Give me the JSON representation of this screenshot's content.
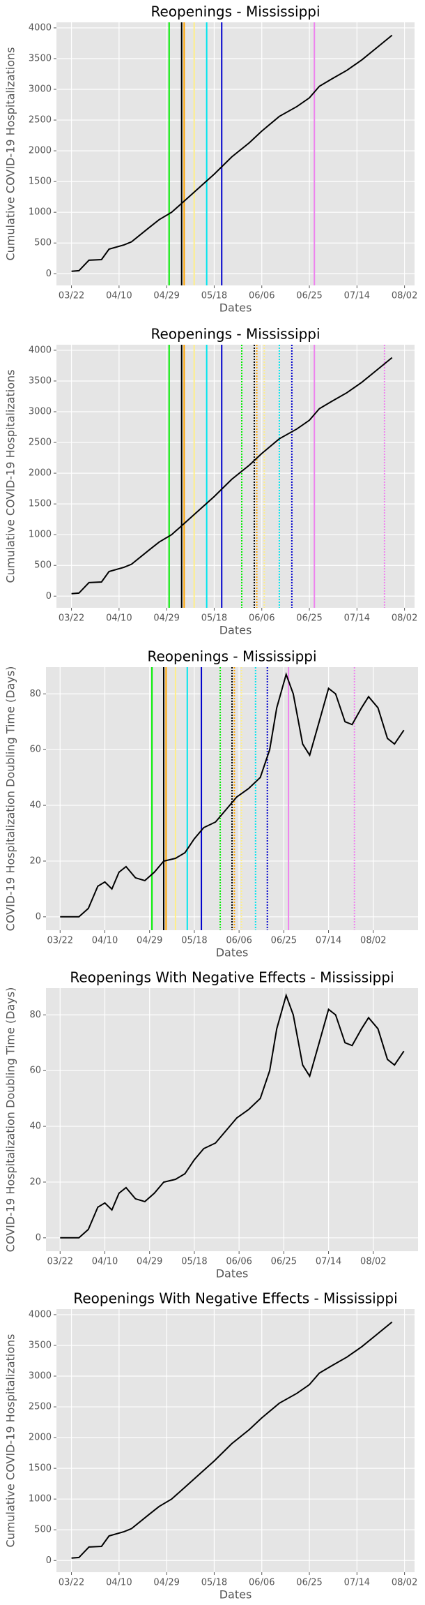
{
  "chart_data": [
    {
      "type": "line",
      "title": "Reopenings - Mississippi",
      "xlabel": "Dates",
      "ylabel": "Cumulative COVID-19 Hospitalizations",
      "color": "#000000",
      "x": [
        "03/22",
        "03/25",
        "03/29",
        "04/03",
        "04/06",
        "04/12",
        "04/15",
        "04/22",
        "04/26",
        "05/01",
        "05/06",
        "05/12",
        "05/18",
        "05/25",
        "06/01",
        "06/06",
        "06/13",
        "06/20",
        "06/25",
        "06/29",
        "07/04",
        "07/10",
        "07/16",
        "07/22",
        "07/28"
      ],
      "values": [
        40,
        50,
        220,
        230,
        400,
        470,
        520,
        750,
        880,
        1000,
        1180,
        1400,
        1620,
        1900,
        2130,
        2320,
        2560,
        2720,
        2860,
        3050,
        3170,
        3310,
        3480,
        3680,
        3880
      ],
      "xlim": [
        "03/16",
        "08/06"
      ],
      "xticks": [
        "03/22",
        "04/10",
        "04/29",
        "05/18",
        "06/06",
        "06/25",
        "07/14",
        "08/02"
      ],
      "ylim": [
        -190,
        4090
      ],
      "yticks": [
        0,
        500,
        1000,
        1500,
        2000,
        2500,
        3000,
        3500,
        4000
      ],
      "grid": true,
      "events": [
        {
          "date": "04/30",
          "color": "#00ee00",
          "style": "solid"
        },
        {
          "date": "05/05",
          "color": "#000000",
          "style": "solid"
        },
        {
          "date": "05/06",
          "color": "#ffa500",
          "style": "solid"
        },
        {
          "date": "05/10",
          "color": "#ffee88",
          "style": "solid"
        },
        {
          "date": "05/15",
          "color": "#00e5ee",
          "style": "solid"
        },
        {
          "date": "05/21",
          "color": "#0000cd",
          "style": "solid"
        },
        {
          "date": "06/27",
          "color": "#ee82ee",
          "style": "solid"
        }
      ]
    },
    {
      "type": "line",
      "title": "Reopenings - Mississippi",
      "xlabel": "Dates",
      "ylabel": "Cumulative COVID-19 Hospitalizations",
      "color": "#000000",
      "x": [
        "03/22",
        "03/25",
        "03/29",
        "04/03",
        "04/06",
        "04/12",
        "04/15",
        "04/22",
        "04/26",
        "05/01",
        "05/06",
        "05/12",
        "05/18",
        "05/25",
        "06/01",
        "06/06",
        "06/13",
        "06/20",
        "06/25",
        "06/29",
        "07/04",
        "07/10",
        "07/16",
        "07/22",
        "07/28"
      ],
      "values": [
        40,
        50,
        220,
        230,
        400,
        470,
        520,
        750,
        880,
        1000,
        1180,
        1400,
        1620,
        1900,
        2130,
        2320,
        2560,
        2720,
        2860,
        3050,
        3170,
        3310,
        3480,
        3680,
        3880
      ],
      "xlim": [
        "03/16",
        "08/06"
      ],
      "xticks": [
        "03/22",
        "04/10",
        "04/29",
        "05/18",
        "06/06",
        "06/25",
        "07/14",
        "08/02"
      ],
      "ylim": [
        -190,
        4090
      ],
      "yticks": [
        0,
        500,
        1000,
        1500,
        2000,
        2500,
        3000,
        3500,
        4000
      ],
      "grid": true,
      "events": [
        {
          "date": "04/30",
          "color": "#00ee00",
          "style": "solid"
        },
        {
          "date": "05/05",
          "color": "#000000",
          "style": "solid"
        },
        {
          "date": "05/06",
          "color": "#ffa500",
          "style": "solid"
        },
        {
          "date": "05/10",
          "color": "#ffee88",
          "style": "solid"
        },
        {
          "date": "05/15",
          "color": "#00e5ee",
          "style": "solid"
        },
        {
          "date": "05/21",
          "color": "#0000cd",
          "style": "solid"
        },
        {
          "date": "06/27",
          "color": "#ee82ee",
          "style": "solid"
        },
        {
          "date": "05/29",
          "color": "#00ee00",
          "style": "dotted"
        },
        {
          "date": "06/03",
          "color": "#000000",
          "style": "dotted"
        },
        {
          "date": "06/04",
          "color": "#ffa500",
          "style": "dotted"
        },
        {
          "date": "06/07",
          "color": "#ffee88",
          "style": "dotted"
        },
        {
          "date": "06/13",
          "color": "#00e5ee",
          "style": "dotted"
        },
        {
          "date": "06/18",
          "color": "#0000cd",
          "style": "dotted"
        },
        {
          "date": "07/25",
          "color": "#ee82ee",
          "style": "dotted"
        }
      ]
    },
    {
      "type": "line",
      "title": "Reopenings - Mississippi",
      "xlabel": "Dates",
      "ylabel": "COVID-19 Hospitalization Doubling Time (Days)",
      "color": "#000000",
      "x": [
        "03/22",
        "03/30",
        "04/03",
        "04/07",
        "04/10",
        "04/13",
        "04/16",
        "04/19",
        "04/23",
        "04/27",
        "05/01",
        "05/05",
        "05/10",
        "05/14",
        "05/18",
        "05/22",
        "05/27",
        "06/01",
        "06/05",
        "06/10",
        "06/15",
        "06/19",
        "06/22",
        "06/26",
        "06/29",
        "07/03",
        "07/06",
        "07/10",
        "07/14",
        "07/17",
        "07/21",
        "07/24",
        "07/28",
        "07/31",
        "08/04",
        "08/08",
        "08/11",
        "08/15"
      ],
      "values": [
        0,
        0,
        3,
        11,
        12.5,
        10,
        16,
        18,
        14,
        13,
        16,
        20,
        21,
        23,
        28,
        32,
        34,
        39,
        43,
        46,
        50,
        60,
        75,
        87,
        80,
        62,
        58,
        70,
        82,
        80,
        70,
        69,
        75,
        79,
        75,
        64,
        62,
        67
      ],
      "xlim": [
        "03/16",
        "08/21"
      ],
      "xticks": [
        "03/22",
        "04/10",
        "04/29",
        "05/18",
        "06/06",
        "06/25",
        "07/14",
        "08/02"
      ],
      "ylim": [
        -4.8,
        89.6
      ],
      "yticks": [
        0,
        20,
        40,
        60,
        80
      ],
      "grid": true,
      "events": [
        {
          "date": "04/30",
          "color": "#00ee00",
          "style": "solid"
        },
        {
          "date": "05/05",
          "color": "#000000",
          "style": "solid"
        },
        {
          "date": "05/06",
          "color": "#ffa500",
          "style": "solid"
        },
        {
          "date": "05/10",
          "color": "#ffee88",
          "style": "solid"
        },
        {
          "date": "05/15",
          "color": "#00e5ee",
          "style": "solid"
        },
        {
          "date": "05/21",
          "color": "#0000cd",
          "style": "solid"
        },
        {
          "date": "06/27",
          "color": "#ee82ee",
          "style": "solid"
        },
        {
          "date": "05/29",
          "color": "#00ee00",
          "style": "dotted"
        },
        {
          "date": "06/03",
          "color": "#000000",
          "style": "dotted"
        },
        {
          "date": "06/04",
          "color": "#ffa500",
          "style": "dotted"
        },
        {
          "date": "06/07",
          "color": "#ffee88",
          "style": "dotted"
        },
        {
          "date": "06/13",
          "color": "#00e5ee",
          "style": "dotted"
        },
        {
          "date": "06/18",
          "color": "#0000cd",
          "style": "dotted"
        },
        {
          "date": "07/25",
          "color": "#ee82ee",
          "style": "dotted"
        }
      ]
    },
    {
      "type": "line",
      "title": "Reopenings With Negative Effects - Mississippi",
      "xlabel": "Dates",
      "ylabel": "COVID-19 Hospitalization Doubling Time (Days)",
      "color": "#000000",
      "x": [
        "03/22",
        "03/30",
        "04/03",
        "04/07",
        "04/10",
        "04/13",
        "04/16",
        "04/19",
        "04/23",
        "04/27",
        "05/01",
        "05/05",
        "05/10",
        "05/14",
        "05/18",
        "05/22",
        "05/27",
        "06/01",
        "06/05",
        "06/10",
        "06/15",
        "06/19",
        "06/22",
        "06/26",
        "06/29",
        "07/03",
        "07/06",
        "07/10",
        "07/14",
        "07/17",
        "07/21",
        "07/24",
        "07/28",
        "07/31",
        "08/04",
        "08/08",
        "08/11",
        "08/15"
      ],
      "values": [
        0,
        0,
        3,
        11,
        12.5,
        10,
        16,
        18,
        14,
        13,
        16,
        20,
        21,
        23,
        28,
        32,
        34,
        39,
        43,
        46,
        50,
        60,
        75,
        87,
        80,
        62,
        58,
        70,
        82,
        80,
        70,
        69,
        75,
        79,
        75,
        64,
        62,
        67
      ],
      "xlim": [
        "03/16",
        "08/21"
      ],
      "xticks": [
        "03/22",
        "04/10",
        "04/29",
        "05/18",
        "06/06",
        "06/25",
        "07/14",
        "08/02"
      ],
      "ylim": [
        -4.8,
        89.6
      ],
      "yticks": [
        0,
        20,
        40,
        60,
        80
      ],
      "grid": true
    },
    {
      "type": "line",
      "title": "Reopenings With Negative Effects - Mississippi",
      "xlabel": "Dates",
      "ylabel": "Cumulative COVID-19 Hospitalizations",
      "color": "#000000",
      "x": [
        "03/22",
        "03/25",
        "03/29",
        "04/03",
        "04/06",
        "04/12",
        "04/15",
        "04/22",
        "04/26",
        "05/01",
        "05/06",
        "05/12",
        "05/18",
        "05/25",
        "06/01",
        "06/06",
        "06/13",
        "06/20",
        "06/25",
        "06/29",
        "07/04",
        "07/10",
        "07/16",
        "07/22",
        "07/28"
      ],
      "values": [
        40,
        50,
        220,
        230,
        400,
        470,
        520,
        750,
        880,
        1000,
        1180,
        1400,
        1620,
        1900,
        2130,
        2320,
        2560,
        2720,
        2860,
        3050,
        3170,
        3310,
        3480,
        3680,
        3880
      ],
      "xlim": [
        "03/16",
        "08/06"
      ],
      "xticks": [
        "03/22",
        "04/10",
        "04/29",
        "05/18",
        "06/06",
        "06/25",
        "07/14",
        "08/02"
      ],
      "ylim": [
        -190,
        4090
      ],
      "yticks": [
        0,
        500,
        1000,
        1500,
        2000,
        2500,
        3000,
        3500,
        4000
      ],
      "grid": true
    }
  ]
}
